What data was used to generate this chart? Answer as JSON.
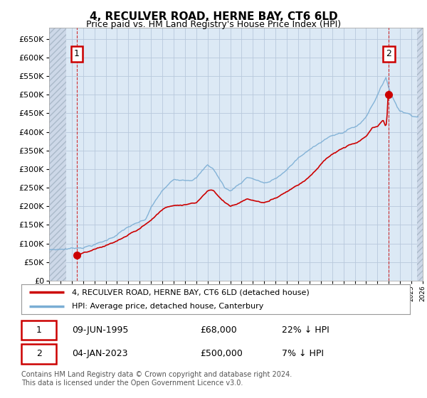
{
  "title": "4, RECULVER ROAD, HERNE BAY, CT6 6LD",
  "subtitle": "Price paid vs. HM Land Registry's House Price Index (HPI)",
  "legend_line1": "4, RECULVER ROAD, HERNE BAY, CT6 6LD (detached house)",
  "legend_line2": "HPI: Average price, detached house, Canterbury",
  "table_row1": [
    "1",
    "09-JUN-1995",
    "£68,000",
    "22% ↓ HPI"
  ],
  "table_row2": [
    "2",
    "04-JAN-2023",
    "£500,000",
    "7% ↓ HPI"
  ],
  "footnote": "Contains HM Land Registry data © Crown copyright and database right 2024.\nThis data is licensed under the Open Government Licence v3.0.",
  "hpi_color": "#7aadd4",
  "price_color": "#cc0000",
  "plot_bg": "#dce9f5",
  "hatch_color": "#c8d4e4",
  "ylim": [
    0,
    680000
  ],
  "yticks": [
    0,
    50000,
    100000,
    150000,
    200000,
    250000,
    300000,
    350000,
    400000,
    450000,
    500000,
    550000,
    600000,
    650000
  ],
  "xlim_start": 1993.0,
  "xlim_end": 2026.0,
  "s1_x": 1995.44,
  "s1_y": 68000,
  "s2_x": 2023.01,
  "s2_y": 500000
}
